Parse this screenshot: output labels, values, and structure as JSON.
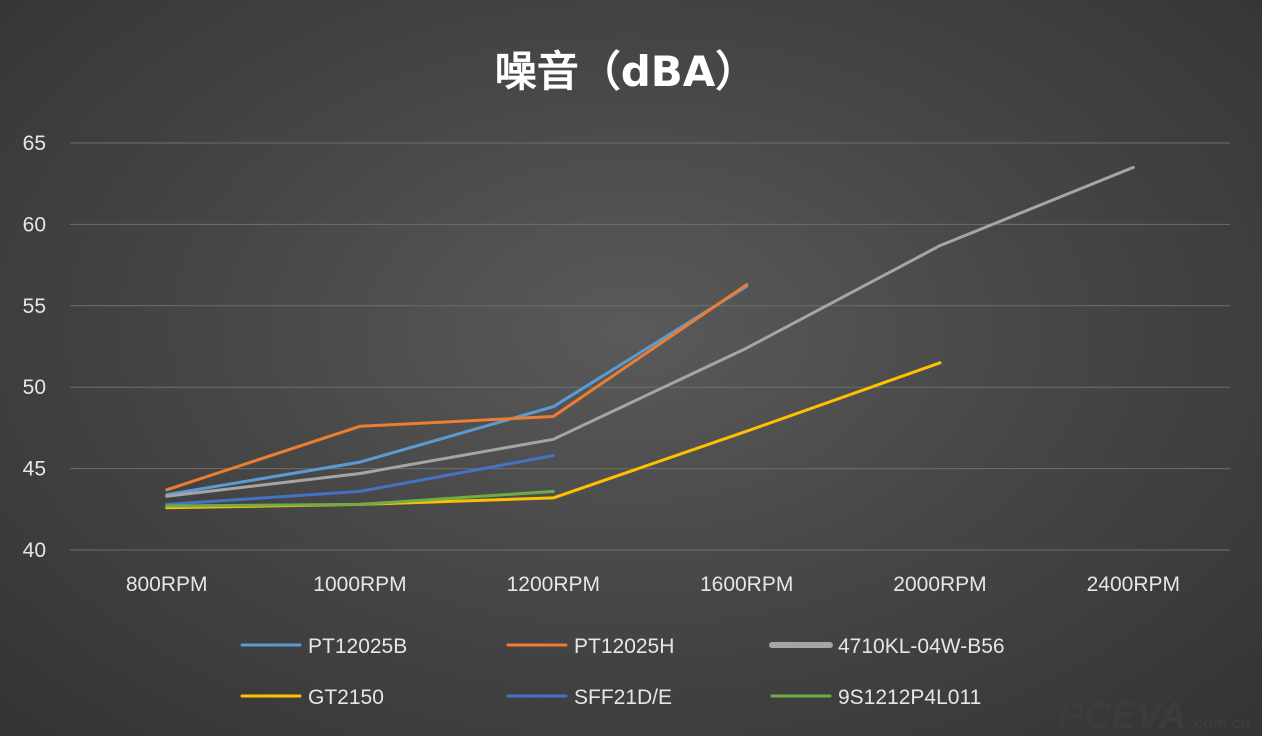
{
  "chart_data": {
    "type": "line",
    "title": "噪音（dBA）",
    "xlabel": "",
    "ylabel": "",
    "categories": [
      "800RPM",
      "1000RPM",
      "1200RPM",
      "1600RPM",
      "2000RPM",
      "2400RPM"
    ],
    "ylim": [
      40,
      65
    ],
    "yticks": [
      40,
      45,
      50,
      55,
      60,
      65
    ],
    "grid": true,
    "legend_position": "bottom",
    "series": [
      {
        "name": "PT12025B",
        "color": "#5b9bd5",
        "values": [
          43.4,
          45.4,
          48.8,
          56.2,
          null,
          null
        ]
      },
      {
        "name": "PT12025H",
        "color": "#ed7d31",
        "values": [
          43.7,
          47.6,
          48.2,
          56.3,
          null,
          null
        ]
      },
      {
        "name": "4710KL-04W-B56",
        "color": "#a5a5a5",
        "values": [
          43.3,
          44.7,
          46.8,
          52.4,
          58.7,
          63.5
        ]
      },
      {
        "name": "GT2150",
        "color": "#ffc000",
        "values": [
          42.6,
          42.8,
          43.2,
          47.3,
          51.5,
          null
        ]
      },
      {
        "name": "SFF21D/E",
        "color": "#4472c4",
        "values": [
          42.8,
          43.6,
          45.8,
          null,
          null,
          null
        ]
      },
      {
        "name": "9S1212P4L011",
        "color": "#70ad47",
        "values": [
          42.7,
          42.8,
          43.6,
          null,
          null,
          null
        ]
      }
    ]
  },
  "watermark": {
    "brand": "PCEVA",
    "domain": ".com.cn"
  }
}
